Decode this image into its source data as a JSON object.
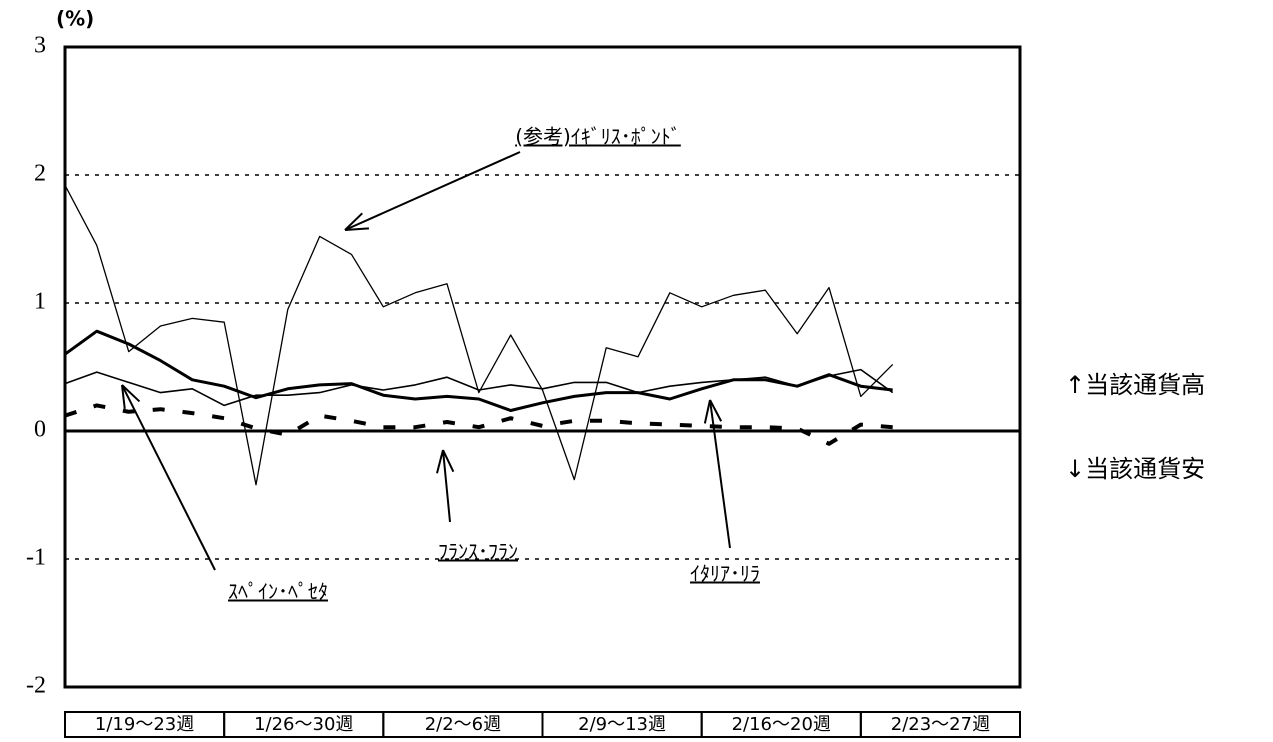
{
  "chart_data": {
    "type": "line",
    "unit_label": "(%)",
    "categories": [
      null,
      null,
      null,
      null,
      null,
      null,
      null,
      null,
      null,
      null,
      null,
      null,
      null,
      null,
      null,
      null,
      null,
      null,
      null,
      null,
      null,
      null,
      null,
      null,
      null,
      null,
      null,
      null,
      null,
      null
    ],
    "category_groups": [
      "1/19～23週",
      "1/26～30週",
      "2/2～6週",
      "2/9～13週",
      "2/16～20週",
      "2/23～27週"
    ],
    "series": [
      {
        "name": "(参考)ｲｷﾞﾘｽ･ﾎﾟﾝﾄﾞ",
        "color": "#000000",
        "linewidth": 1.3,
        "style": "solid",
        "values": [
          1.92,
          1.45,
          0.62,
          0.82,
          0.88,
          0.85,
          -0.42,
          0.95,
          1.52,
          1.38,
          0.97,
          1.08,
          1.15,
          0.3,
          0.75,
          0.32,
          -0.38,
          0.65,
          0.58,
          1.08,
          0.97,
          1.06,
          1.1,
          0.76,
          1.12,
          0.27,
          0.52,
          null,
          null,
          null
        ]
      },
      {
        "name": "ｽﾍﾟｲﾝ･ﾍﾟｾﾀ",
        "color": "#000000",
        "linewidth": 1.6,
        "style": "solid",
        "values": [
          0.37,
          0.46,
          0.38,
          0.3,
          0.33,
          0.2,
          0.28,
          0.28,
          0.3,
          0.36,
          0.32,
          0.36,
          0.42,
          0.32,
          0.36,
          0.33,
          0.38,
          0.38,
          0.3,
          0.35,
          0.38,
          0.4,
          0.42,
          0.35,
          0.43,
          0.48,
          0.3,
          null,
          null,
          null
        ]
      },
      {
        "name": "ｲﾀﾘｱ･ﾘﾗ",
        "color": "#000000",
        "linewidth": 3,
        "style": "solid",
        "values": [
          0.6,
          0.78,
          0.68,
          0.55,
          0.4,
          0.35,
          0.26,
          0.33,
          0.36,
          0.37,
          0.28,
          0.25,
          0.27,
          0.25,
          0.16,
          0.22,
          0.27,
          0.3,
          0.3,
          0.25,
          0.33,
          0.4,
          0.4,
          0.35,
          0.44,
          0.35,
          0.32,
          null,
          null,
          null
        ]
      },
      {
        "name": "ﾌﾗﾝｽ･ﾌﾗﾝ",
        "color": "#000000",
        "linewidth": 4,
        "style": "dashed",
        "values": [
          0.12,
          0.2,
          0.15,
          0.17,
          0.14,
          0.1,
          0.02,
          -0.03,
          0.12,
          0.08,
          0.03,
          0.03,
          0.07,
          0.03,
          0.1,
          0.04,
          0.08,
          0.08,
          0.06,
          0.05,
          0.04,
          0.03,
          0.03,
          0.02,
          -0.1,
          0.05,
          0.03,
          null,
          null,
          null
        ]
      }
    ],
    "ylim": [
      -2,
      3
    ],
    "yticks": [
      -2,
      -1,
      0,
      1,
      2,
      3
    ],
    "grid": true,
    "annotations": [
      "↑当該通貨高",
      "↓当該通貨安"
    ]
  }
}
